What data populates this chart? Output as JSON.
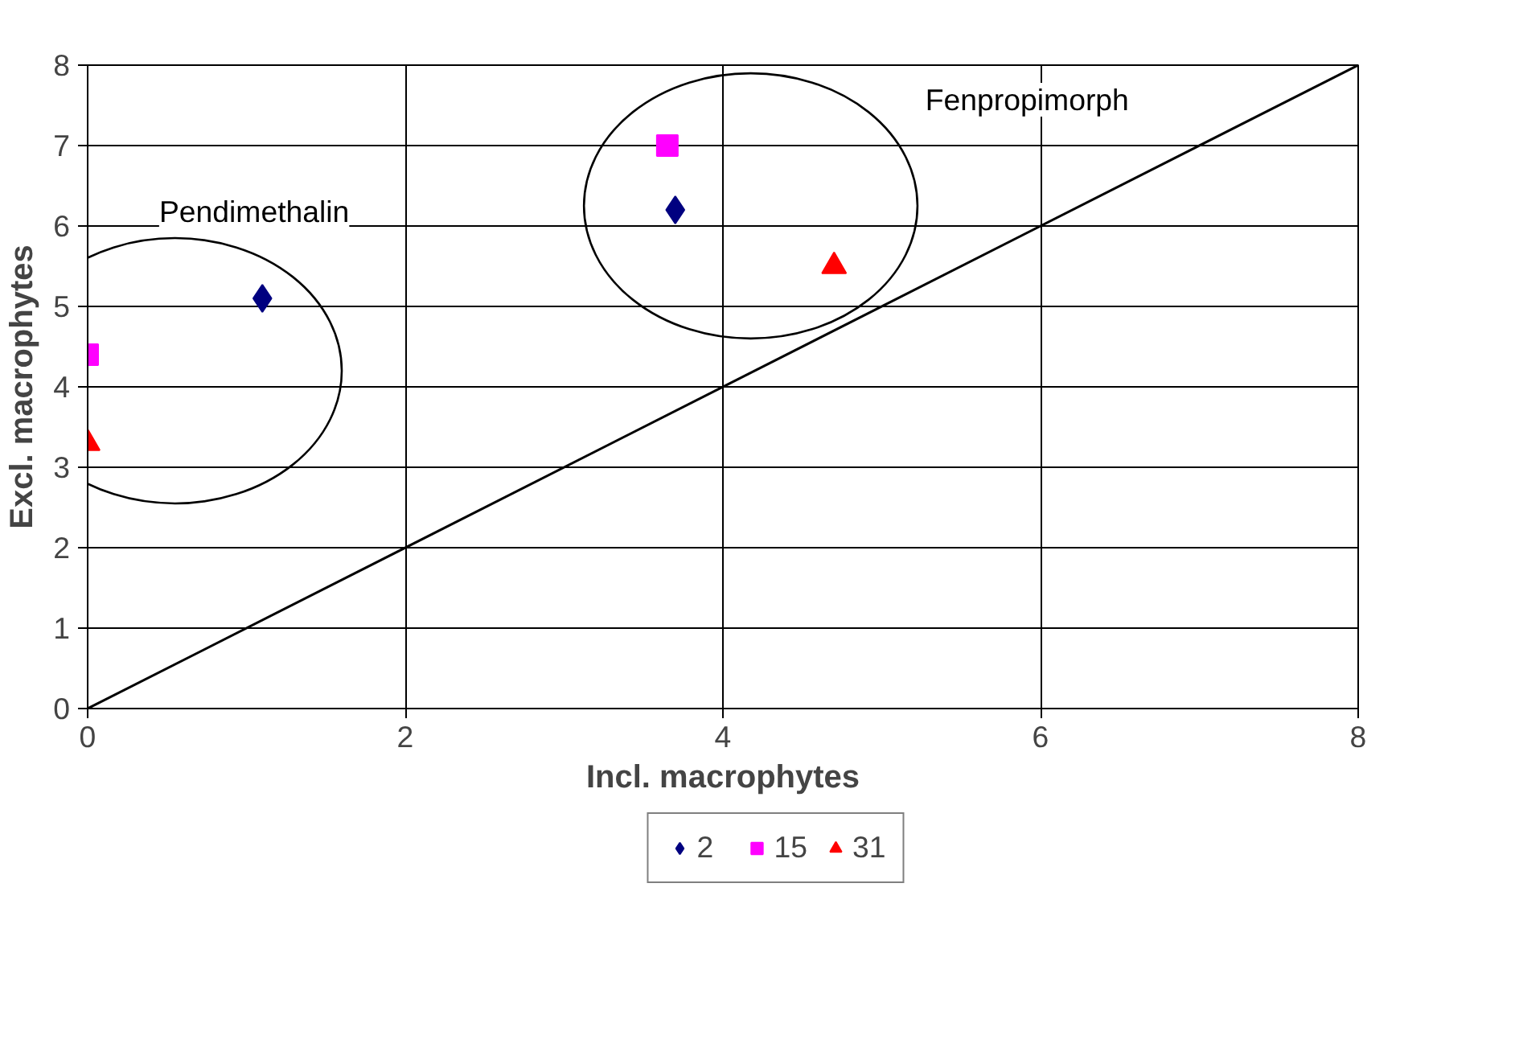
{
  "chart_data": {
    "type": "scatter",
    "xlabel": "Incl. macrophytes",
    "ylabel": "Excl. macrophytes",
    "xlim": [
      0,
      8
    ],
    "ylim": [
      0,
      8
    ],
    "xticks": [
      0,
      2,
      4,
      6,
      8
    ],
    "yticks": [
      0,
      1,
      2,
      3,
      4,
      5,
      6,
      7,
      8
    ],
    "grid": true,
    "legend": "bottom",
    "series": [
      {
        "name": "2",
        "color": "#000080",
        "marker": "diamond",
        "x": [
          1.1,
          3.7
        ],
        "values": [
          5.1,
          6.2
        ]
      },
      {
        "name": "15",
        "color": "#ff00ff",
        "marker": "square",
        "x": [
          0,
          3.65
        ],
        "values": [
          4.4,
          7.0
        ]
      },
      {
        "name": "31",
        "color": "#ff0000",
        "marker": "triangle",
        "x": [
          0,
          4.7
        ],
        "values": [
          3.3,
          5.5
        ]
      },
      {
        "type": "line",
        "color": "#000000",
        "x": [
          0,
          8
        ],
        "values": [
          0,
          8
        ]
      }
    ],
    "annotations": [
      "Pendimethalin",
      "Fenpropimorph"
    ]
  }
}
